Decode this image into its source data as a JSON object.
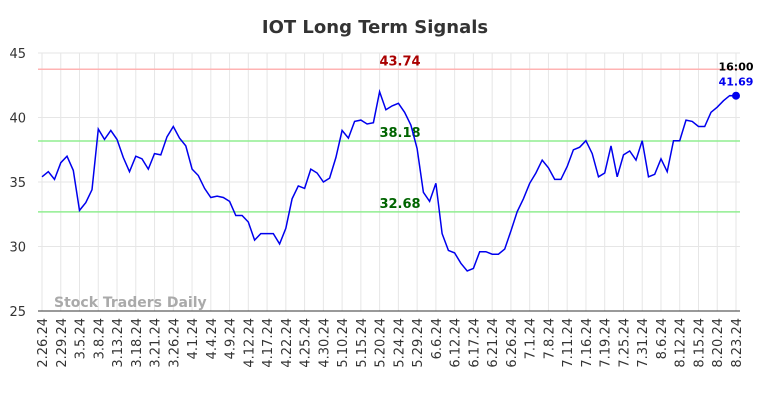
{
  "chart_data": {
    "type": "line",
    "title": "IOT Long Term Signals",
    "categories": [
      "2.26.24",
      null,
      null,
      "2.29.24",
      null,
      null,
      "3.5.24",
      null,
      null,
      "3.8.24",
      null,
      null,
      "3.13.24",
      null,
      null,
      "3.18.24",
      null,
      null,
      "3.21.24",
      null,
      null,
      "3.26.24",
      null,
      null,
      "4.1.24",
      null,
      null,
      "4.4.24",
      null,
      null,
      "4.9.24",
      null,
      null,
      "4.12.24",
      null,
      null,
      "4.17.24",
      null,
      null,
      "4.22.24",
      null,
      null,
      "4.25.24",
      null,
      null,
      "4.30.24",
      null,
      null,
      "5.10.24",
      null,
      null,
      "5.15.24",
      null,
      null,
      "5.20.24",
      null,
      null,
      "5.24.24",
      null,
      null,
      "5.29.24",
      null,
      null,
      "6.6.24",
      null,
      null,
      "6.12.24",
      null,
      null,
      "6.17.24",
      null,
      null,
      "6.21.24",
      null,
      null,
      "6.26.24",
      null,
      null,
      "7.1.24",
      null,
      null,
      "7.8.24",
      null,
      null,
      "7.11.24",
      null,
      null,
      "7.16.24",
      null,
      null,
      "7.19.24",
      null,
      null,
      "7.25.24",
      null,
      null,
      "7.31.24",
      null,
      null,
      "8.6.24",
      null,
      null,
      "8.12.24",
      null,
      null,
      "8.15.24",
      null,
      null,
      "8.20.24",
      null,
      null,
      "8.23.24"
    ],
    "values": [
      35.4,
      35.8,
      35.2,
      36.5,
      37.0,
      35.9,
      32.8,
      33.4,
      34.4,
      39.1,
      38.3,
      39.0,
      38.3,
      36.9,
      35.8,
      37.0,
      36.8,
      36.0,
      37.2,
      37.1,
      38.5,
      39.3,
      38.4,
      37.8,
      36.0,
      35.5,
      34.5,
      33.8,
      33.9,
      33.8,
      33.5,
      32.4,
      32.4,
      31.9,
      30.5,
      31.0,
      31.0,
      31.0,
      30.2,
      31.4,
      33.7,
      34.7,
      34.5,
      36.0,
      35.7,
      35.0,
      35.3,
      36.9,
      39.0,
      38.4,
      39.7,
      39.8,
      39.5,
      39.6,
      42.0,
      40.6,
      40.9,
      41.1,
      40.4,
      39.4,
      37.6,
      34.2,
      33.5,
      34.9,
      31.0,
      29.7,
      29.5,
      28.7,
      28.1,
      28.3,
      29.6,
      29.6,
      29.4,
      29.4,
      29.8,
      31.2,
      32.7,
      33.7,
      34.9,
      35.7,
      36.7,
      36.1,
      35.2,
      35.2,
      36.2,
      37.5,
      37.7,
      38.2,
      37.2,
      35.4,
      35.7,
      37.8,
      35.4,
      37.1,
      37.4,
      36.7,
      38.2,
      35.4,
      35.6,
      36.8,
      35.8,
      38.2,
      38.2,
      39.8,
      39.7,
      39.3,
      39.3,
      40.4,
      40.8,
      41.3,
      41.7,
      41.69
    ],
    "color": "#0000ee",
    "ylim": [
      25,
      45
    ],
    "yticks": [
      25,
      30,
      35,
      40,
      45
    ],
    "grid": true,
    "levels": [
      {
        "value": 43.74,
        "color": "#ffb3b3",
        "label_color": "#aa0000"
      },
      {
        "value": 38.18,
        "color": "#90ee90",
        "label_color": "#006400"
      },
      {
        "value": 32.68,
        "color": "#90ee90",
        "label_color": "#006400"
      }
    ],
    "last_time": "16:00",
    "watermark": "Stock Traders Daily"
  }
}
